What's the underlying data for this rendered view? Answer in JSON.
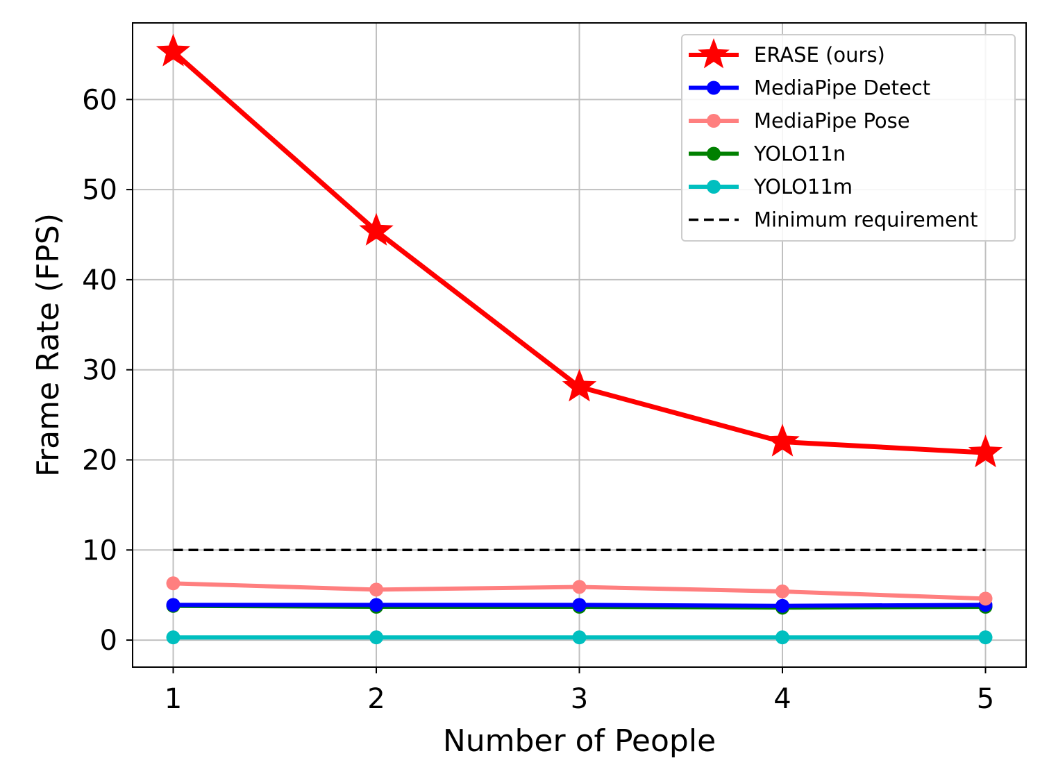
{
  "chart_data": {
    "type": "line",
    "xlabel": "Number of People",
    "ylabel": "Frame Rate (FPS)",
    "x": [
      1,
      2,
      3,
      4,
      5
    ],
    "xticks": [
      "1",
      "2",
      "3",
      "4",
      "5"
    ],
    "yticks": [
      "0",
      "10",
      "20",
      "30",
      "40",
      "50",
      "60"
    ],
    "xlim": [
      0.8,
      5.2
    ],
    "ylim": [
      -3,
      68.5
    ],
    "grid": true,
    "legend_position": "top-right",
    "series": [
      {
        "name": "ERASE (ours)",
        "values": [
          65.3,
          45.4,
          28.1,
          22.0,
          20.8
        ],
        "color": "#ff0000",
        "marker": "star",
        "dashed": false
      },
      {
        "name": "MediaPipe Detect",
        "values": [
          3.9,
          3.9,
          3.9,
          3.8,
          3.9
        ],
        "color": "#0000ff",
        "marker": "circle",
        "dashed": false
      },
      {
        "name": "MediaPipe Pose",
        "values": [
          6.3,
          5.6,
          5.9,
          5.4,
          4.6
        ],
        "color": "#ff7f7f",
        "marker": "circle",
        "dashed": false
      },
      {
        "name": "YOLO11n",
        "values": [
          3.8,
          3.7,
          3.7,
          3.6,
          3.7
        ],
        "color": "#008000",
        "marker": "circle",
        "dashed": false
      },
      {
        "name": "YOLO11m",
        "values": [
          0.3,
          0.3,
          0.3,
          0.3,
          0.3
        ],
        "color": "#00bfbf",
        "marker": "circle",
        "dashed": false
      },
      {
        "name": "Minimum requirement",
        "values": [
          10,
          10,
          10,
          10,
          10
        ],
        "color": "#000000",
        "marker": "none",
        "dashed": true
      }
    ]
  }
}
